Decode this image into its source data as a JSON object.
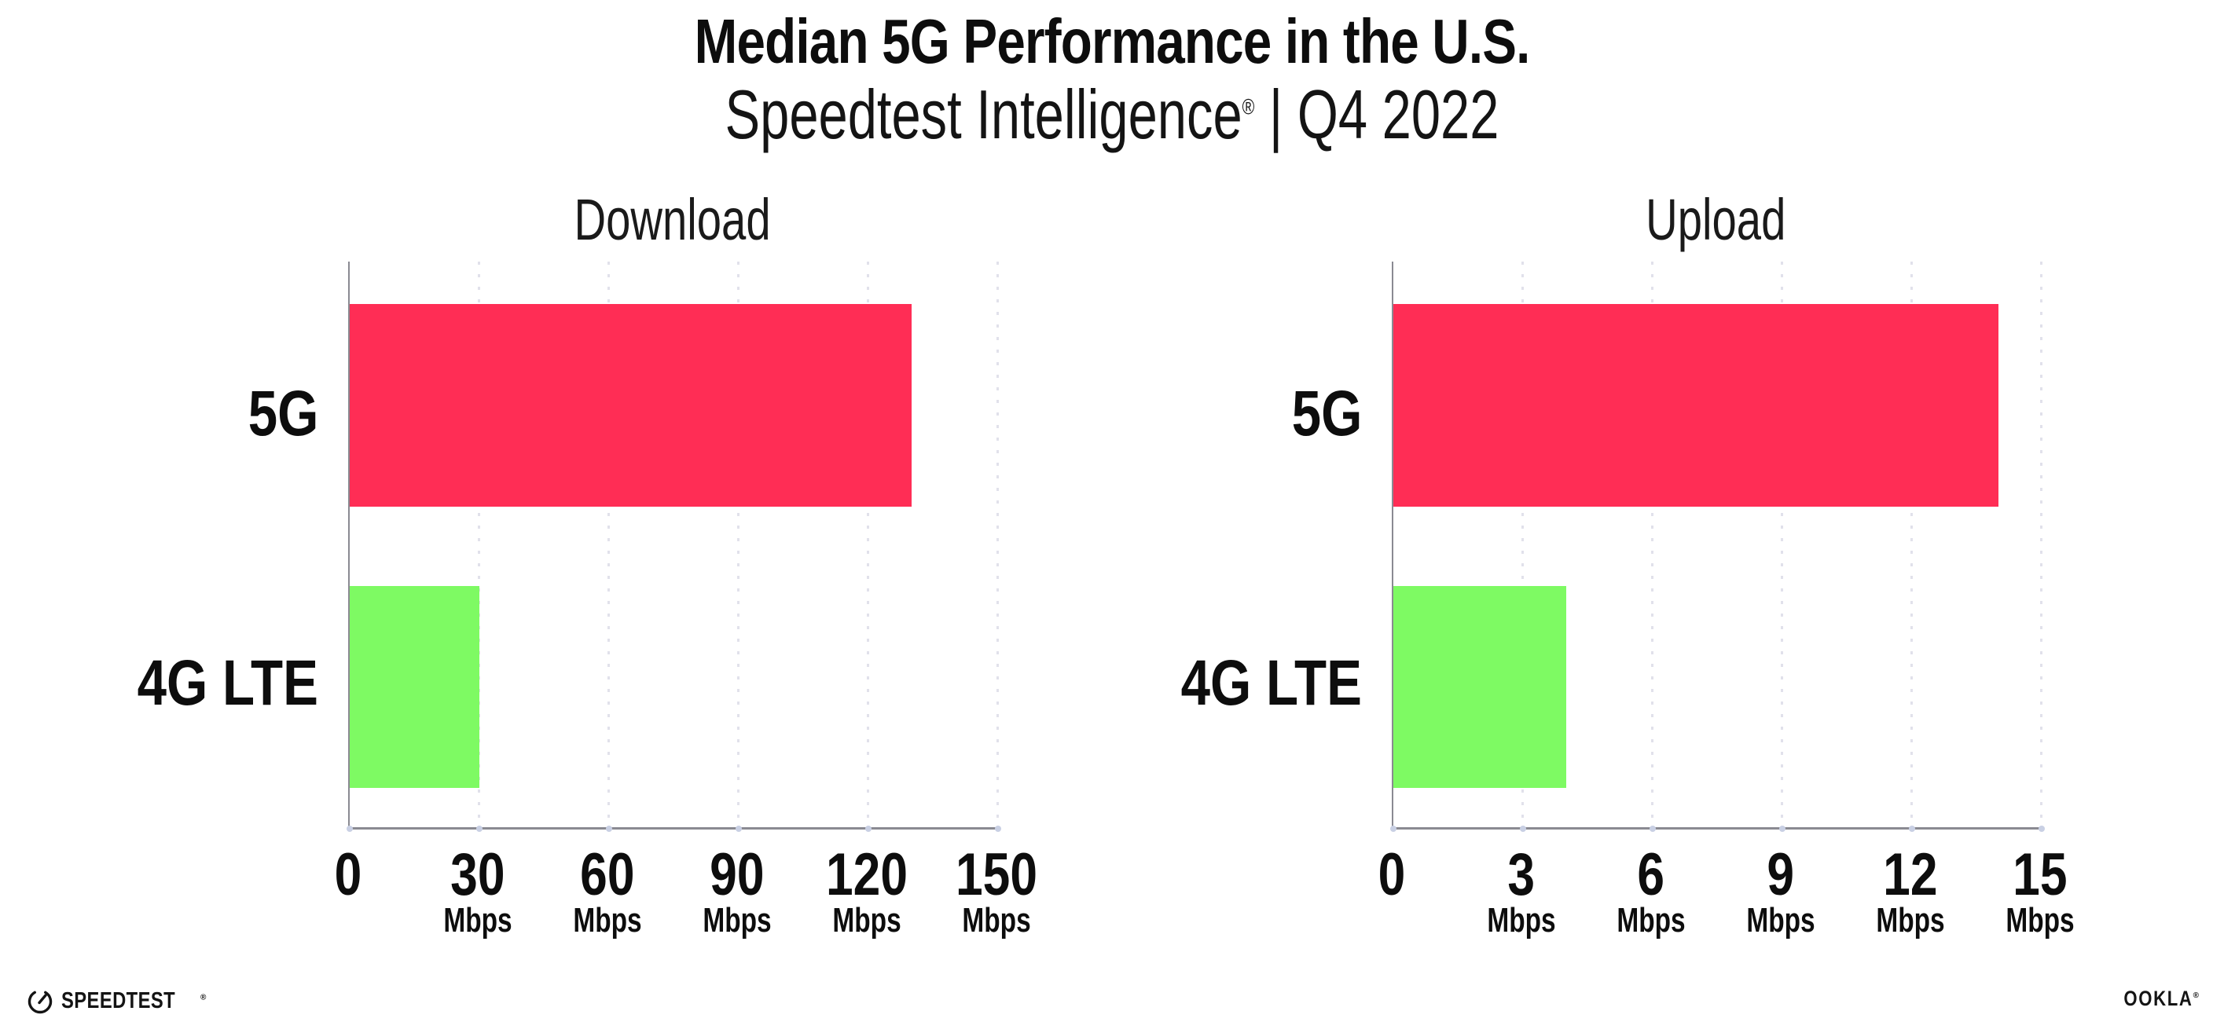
{
  "header": {
    "title": "Median 5G Performance in the U.S.",
    "subtitle_brand": "Speedtest Intelligence",
    "subtitle_reg": "®",
    "subtitle_rest": " | Q4 2022"
  },
  "chart_data": [
    {
      "type": "bar",
      "orientation": "horizontal",
      "title": "Download",
      "categories": [
        "5G",
        "4G LTE"
      ],
      "values": [
        130,
        30
      ],
      "value_unit": "Mbps",
      "xlim": [
        0,
        150
      ],
      "tick_values": [
        0,
        30,
        60,
        90,
        120,
        150
      ],
      "tick_labels": [
        "0",
        "30",
        "60",
        "90",
        "120",
        "150"
      ],
      "tick_unit": "Mbps",
      "bar_colors": [
        "#FF2D55",
        "#7EFA63"
      ],
      "grid": "dotted-vertical",
      "legend": "none"
    },
    {
      "type": "bar",
      "orientation": "horizontal",
      "title": "Upload",
      "categories": [
        "5G",
        "4G LTE"
      ],
      "values": [
        14,
        4
      ],
      "value_unit": "Mbps",
      "xlim": [
        0,
        15
      ],
      "tick_values": [
        0,
        3,
        6,
        9,
        12,
        15
      ],
      "tick_labels": [
        "0",
        "3",
        "6",
        "9",
        "12",
        "15"
      ],
      "tick_unit": "Mbps",
      "bar_colors": [
        "#FF2D55",
        "#7EFA63"
      ],
      "grid": "dotted-vertical",
      "legend": "none"
    }
  ],
  "colors": {
    "bar_5g": "#FF2D55",
    "bar_4g_lte": "#7EFA63",
    "axis": "#8A8A92",
    "gridline": "#E1E1EB",
    "text": "#111111"
  },
  "footer": {
    "speedtest_label": "SPEEDTEST",
    "speedtest_reg": "®",
    "ookla_label": "OOKLA",
    "ookla_reg": "®"
  }
}
